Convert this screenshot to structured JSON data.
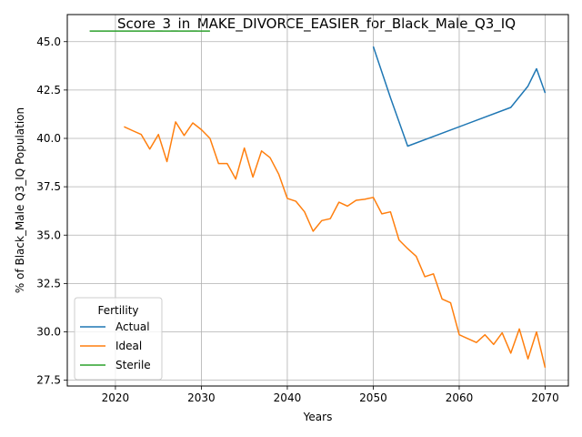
{
  "chart_data": {
    "type": "line",
    "title": "Score_3_in_MAKE_DIVORCE_EASIER_for_Black_Male_Q3_IQ",
    "xlabel": "Years",
    "ylabel": "% of Black_Male Q3_IQ Population",
    "xlim": [
      2014.4,
      2072.7
    ],
    "ylim": [
      27.2,
      46.4
    ],
    "xticks": [
      2020,
      2030,
      2040,
      2050,
      2060,
      2070
    ],
    "yticks": [
      27.5,
      30.0,
      32.5,
      35.0,
      37.5,
      40.0,
      42.5,
      45.0
    ],
    "grid": true,
    "legend": {
      "title": "Fertility",
      "position": "lower-left"
    },
    "series": [
      {
        "name": "Actual",
        "color": "#1f77b4",
        "x": [
          2050,
          2052,
          2054,
          2066,
          2068,
          2069,
          2070
        ],
        "y": [
          44.75,
          42.1,
          39.6,
          41.6,
          42.7,
          43.6,
          42.35
        ]
      },
      {
        "name": "Ideal",
        "color": "#ff7f0e",
        "x": [
          2021,
          2022,
          2023,
          2024,
          2025,
          2026,
          2027,
          2028,
          2029,
          2030,
          2031,
          2032,
          2033,
          2034,
          2035,
          2036,
          2037,
          2038,
          2039,
          2040,
          2041,
          2042,
          2043,
          2044,
          2045,
          2046,
          2047,
          2048,
          2049,
          2050,
          2051,
          2052,
          2053,
          2054,
          2055,
          2056,
          2057,
          2058,
          2059,
          2060,
          2061,
          2062,
          2063,
          2064,
          2065,
          2066,
          2067,
          2068,
          2069,
          2070
        ],
        "y": [
          40.6,
          40.4,
          40.2,
          39.45,
          40.2,
          38.8,
          40.85,
          40.15,
          40.8,
          40.45,
          40.0,
          38.7,
          38.7,
          37.9,
          39.5,
          38.0,
          39.35,
          39.0,
          38.15,
          36.9,
          36.75,
          36.2,
          35.2,
          35.75,
          35.85,
          36.7,
          36.5,
          36.8,
          36.85,
          36.95,
          36.1,
          36.2,
          34.75,
          34.3,
          33.9,
          32.85,
          33.0,
          31.7,
          31.5,
          29.85,
          29.65,
          29.45,
          29.85,
          29.35,
          29.95,
          28.9,
          30.15,
          28.6,
          30.0,
          28.15
        ]
      },
      {
        "name": "Sterile",
        "color": "#2ca02c",
        "x": [
          2017,
          2031
        ],
        "y": [
          45.55,
          45.55
        ]
      }
    ]
  }
}
